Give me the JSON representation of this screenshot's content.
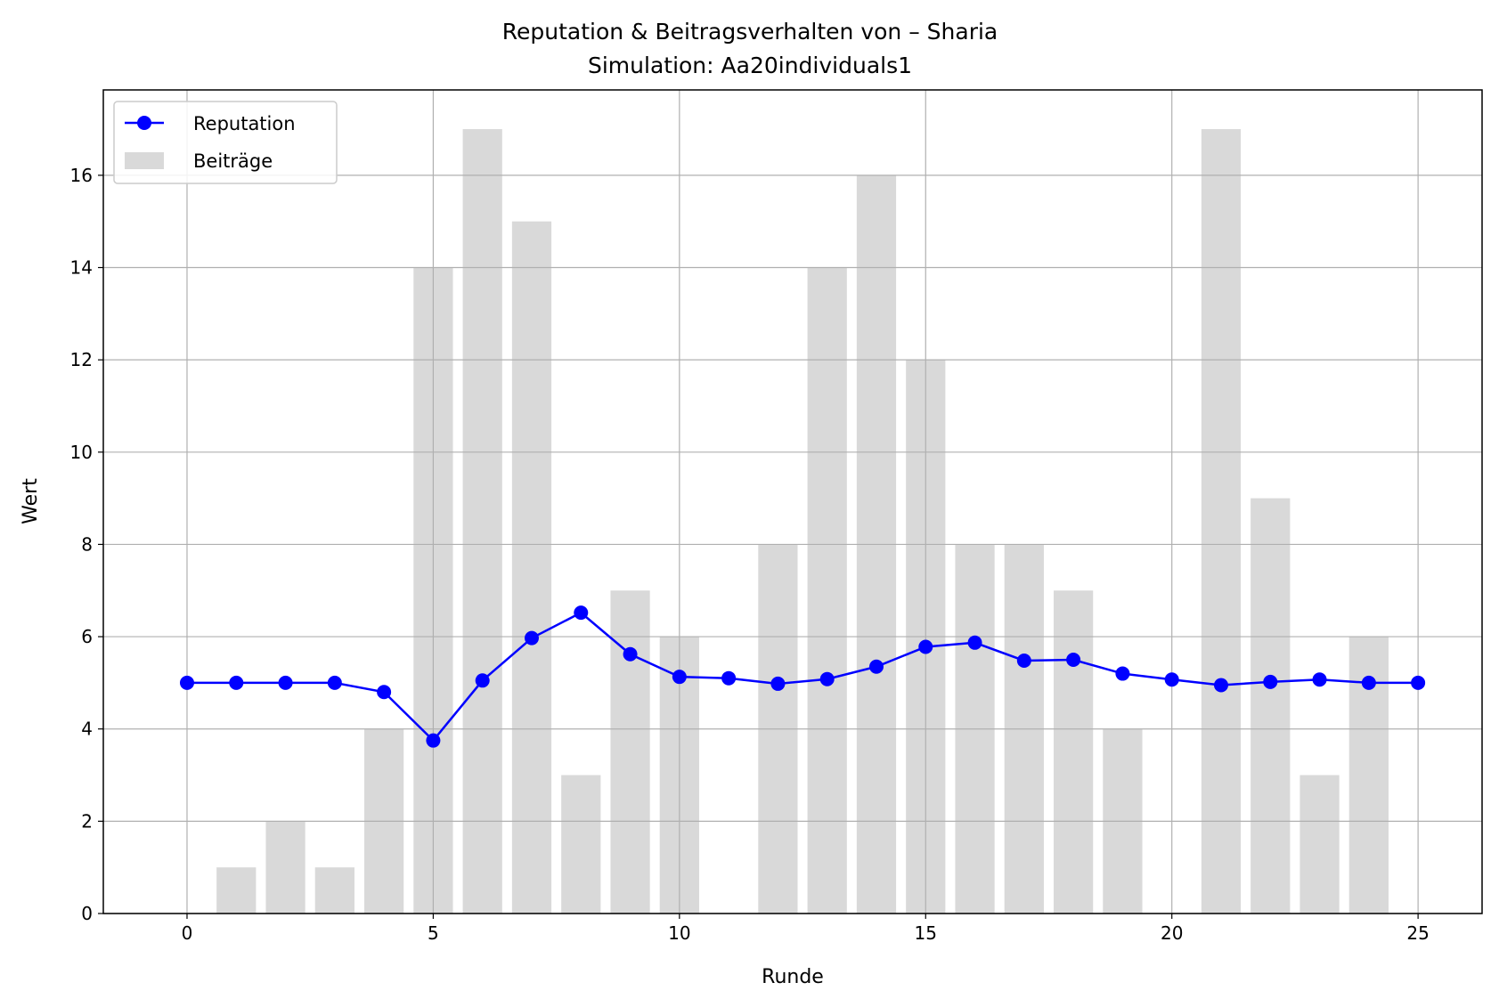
{
  "chart_data": {
    "type": "bar",
    "title": "Reputation & Beitragsverhalten von – Sharia",
    "subtitle": "Simulation: Aa20individuals1",
    "xlabel": "Runde",
    "ylabel": "Wert",
    "xlim": [
      -1.7,
      26.3
    ],
    "ylim": [
      0,
      17.85
    ],
    "x_ticks": [
      0,
      5,
      10,
      15,
      20,
      25
    ],
    "y_ticks": [
      0,
      2,
      4,
      6,
      8,
      10,
      12,
      14,
      16
    ],
    "grid": true,
    "legend_position": "top-left",
    "x": [
      0,
      1,
      2,
      3,
      4,
      5,
      6,
      7,
      8,
      9,
      10,
      11,
      12,
      13,
      14,
      15,
      16,
      17,
      18,
      19,
      20,
      21,
      22,
      23,
      24,
      25
    ],
    "series": [
      {
        "name": "Reputation",
        "kind": "line",
        "color": "#0000ff",
        "values": [
          5.0,
          5.0,
          5.0,
          5.0,
          4.8,
          3.75,
          5.05,
          5.97,
          6.52,
          5.62,
          5.13,
          5.1,
          4.98,
          5.08,
          5.35,
          5.78,
          5.87,
          5.48,
          5.5,
          5.2,
          5.07,
          4.95,
          5.02,
          5.07,
          5.0,
          5.0
        ]
      },
      {
        "name": "Beiträge",
        "kind": "bar",
        "color": "#d9d9d9",
        "values": [
          0,
          1,
          2,
          1,
          4,
          14,
          17,
          15,
          3,
          7,
          6,
          0,
          8,
          14,
          16,
          12,
          8,
          8,
          7,
          4,
          0,
          17,
          9,
          3,
          6,
          0
        ]
      }
    ]
  }
}
